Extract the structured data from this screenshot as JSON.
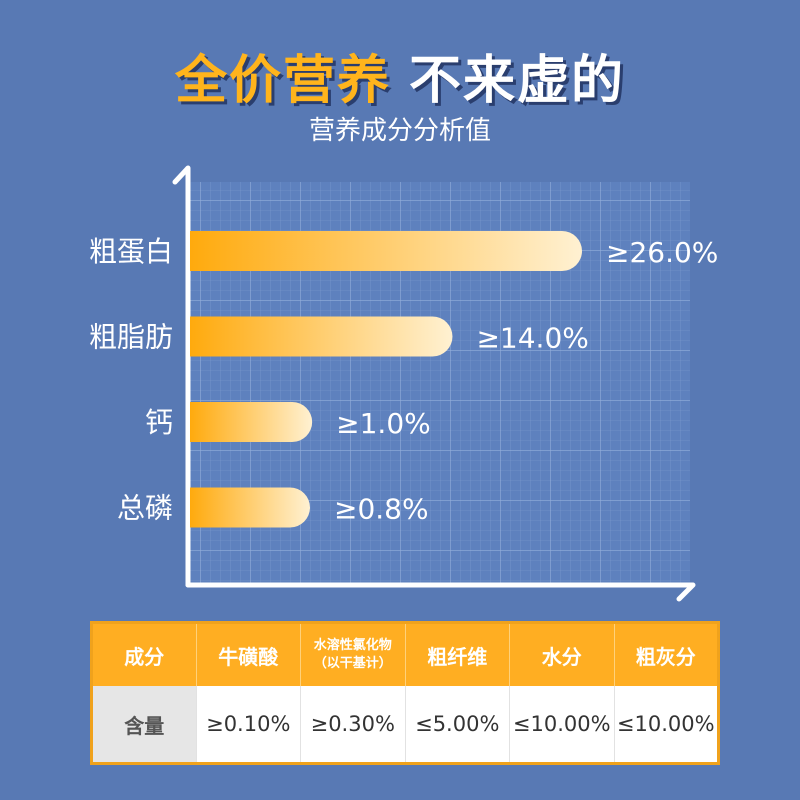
{
  "header": {
    "title_highlight": "全价营养",
    "title_rest": "不来虚的",
    "subtitle": "营养成分分析值"
  },
  "colors": {
    "background": "#5879B4",
    "accent": "#FFB41C",
    "bar_start": "#FFAA0D",
    "bar_end": "#FFF1D2"
  },
  "chart_data": {
    "type": "bar",
    "orientation": "horizontal",
    "categories": [
      "粗蛋白",
      "粗脂肪",
      "钙",
      "总磷"
    ],
    "values": [
      26.0,
      14.0,
      1.0,
      0.8
    ],
    "value_labels": [
      "≥26.0%",
      "≥14.0%",
      "≥1.0%",
      "≥0.8%"
    ],
    "title": "营养成分分析值",
    "grid": true
  },
  "table": {
    "row_header": "成分",
    "columns": [
      {
        "label": "牛磺酸"
      },
      {
        "label": "水溶性氯化物",
        "sublabel": "（以干基计）"
      },
      {
        "label": "粗纤维"
      },
      {
        "label": "水分"
      },
      {
        "label": "粗灰分"
      }
    ],
    "value_row_label": "含量",
    "values": [
      "≥0.10%",
      "≥0.30%",
      "≤5.00%",
      "≤10.00%",
      "≤10.00%"
    ]
  }
}
